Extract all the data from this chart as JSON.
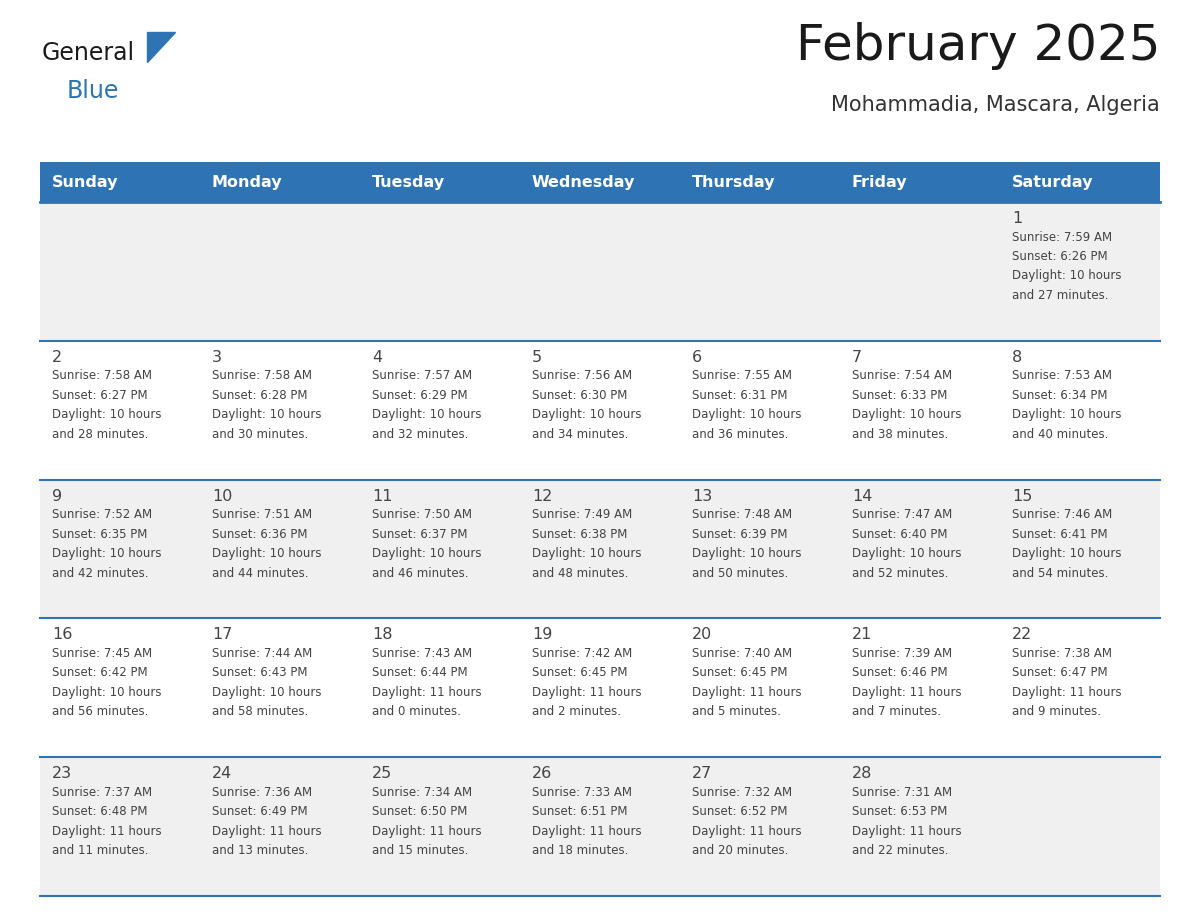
{
  "title": "February 2025",
  "subtitle": "Mohammadia, Mascara, Algeria",
  "header_bg": "#2E74B5",
  "header_text_color": "#FFFFFF",
  "day_names": [
    "Sunday",
    "Monday",
    "Tuesday",
    "Wednesday",
    "Thursday",
    "Friday",
    "Saturday"
  ],
  "row_bg_odd": "#F0F0F0",
  "row_bg_even": "#FFFFFF",
  "separator_color": "#2E74B5",
  "text_color": "#444444",
  "title_color": "#1A1A1A",
  "subtitle_color": "#333333",
  "logo_general_color": "#1A1A1A",
  "logo_blue_color": "#2E74B5",
  "logo_triangle_color": "#2E74B5",
  "calendar": [
    [
      null,
      null,
      null,
      null,
      null,
      null,
      {
        "day": "1",
        "sunrise": "7:59 AM",
        "sunset": "6:26 PM",
        "daylight_line1": "Daylight: 10 hours",
        "daylight_line2": "and 27 minutes."
      }
    ],
    [
      {
        "day": "2",
        "sunrise": "7:58 AM",
        "sunset": "6:27 PM",
        "daylight_line1": "Daylight: 10 hours",
        "daylight_line2": "and 28 minutes."
      },
      {
        "day": "3",
        "sunrise": "7:58 AM",
        "sunset": "6:28 PM",
        "daylight_line1": "Daylight: 10 hours",
        "daylight_line2": "and 30 minutes."
      },
      {
        "day": "4",
        "sunrise": "7:57 AM",
        "sunset": "6:29 PM",
        "daylight_line1": "Daylight: 10 hours",
        "daylight_line2": "and 32 minutes."
      },
      {
        "day": "5",
        "sunrise": "7:56 AM",
        "sunset": "6:30 PM",
        "daylight_line1": "Daylight: 10 hours",
        "daylight_line2": "and 34 minutes."
      },
      {
        "day": "6",
        "sunrise": "7:55 AM",
        "sunset": "6:31 PM",
        "daylight_line1": "Daylight: 10 hours",
        "daylight_line2": "and 36 minutes."
      },
      {
        "day": "7",
        "sunrise": "7:54 AM",
        "sunset": "6:33 PM",
        "daylight_line1": "Daylight: 10 hours",
        "daylight_line2": "and 38 minutes."
      },
      {
        "day": "8",
        "sunrise": "7:53 AM",
        "sunset": "6:34 PM",
        "daylight_line1": "Daylight: 10 hours",
        "daylight_line2": "and 40 minutes."
      }
    ],
    [
      {
        "day": "9",
        "sunrise": "7:52 AM",
        "sunset": "6:35 PM",
        "daylight_line1": "Daylight: 10 hours",
        "daylight_line2": "and 42 minutes."
      },
      {
        "day": "10",
        "sunrise": "7:51 AM",
        "sunset": "6:36 PM",
        "daylight_line1": "Daylight: 10 hours",
        "daylight_line2": "and 44 minutes."
      },
      {
        "day": "11",
        "sunrise": "7:50 AM",
        "sunset": "6:37 PM",
        "daylight_line1": "Daylight: 10 hours",
        "daylight_line2": "and 46 minutes."
      },
      {
        "day": "12",
        "sunrise": "7:49 AM",
        "sunset": "6:38 PM",
        "daylight_line1": "Daylight: 10 hours",
        "daylight_line2": "and 48 minutes."
      },
      {
        "day": "13",
        "sunrise": "7:48 AM",
        "sunset": "6:39 PM",
        "daylight_line1": "Daylight: 10 hours",
        "daylight_line2": "and 50 minutes."
      },
      {
        "day": "14",
        "sunrise": "7:47 AM",
        "sunset": "6:40 PM",
        "daylight_line1": "Daylight: 10 hours",
        "daylight_line2": "and 52 minutes."
      },
      {
        "day": "15",
        "sunrise": "7:46 AM",
        "sunset": "6:41 PM",
        "daylight_line1": "Daylight: 10 hours",
        "daylight_line2": "and 54 minutes."
      }
    ],
    [
      {
        "day": "16",
        "sunrise": "7:45 AM",
        "sunset": "6:42 PM",
        "daylight_line1": "Daylight: 10 hours",
        "daylight_line2": "and 56 minutes."
      },
      {
        "day": "17",
        "sunrise": "7:44 AM",
        "sunset": "6:43 PM",
        "daylight_line1": "Daylight: 10 hours",
        "daylight_line2": "and 58 minutes."
      },
      {
        "day": "18",
        "sunrise": "7:43 AM",
        "sunset": "6:44 PM",
        "daylight_line1": "Daylight: 11 hours",
        "daylight_line2": "and 0 minutes."
      },
      {
        "day": "19",
        "sunrise": "7:42 AM",
        "sunset": "6:45 PM",
        "daylight_line1": "Daylight: 11 hours",
        "daylight_line2": "and 2 minutes."
      },
      {
        "day": "20",
        "sunrise": "7:40 AM",
        "sunset": "6:45 PM",
        "daylight_line1": "Daylight: 11 hours",
        "daylight_line2": "and 5 minutes."
      },
      {
        "day": "21",
        "sunrise": "7:39 AM",
        "sunset": "6:46 PM",
        "daylight_line1": "Daylight: 11 hours",
        "daylight_line2": "and 7 minutes."
      },
      {
        "day": "22",
        "sunrise": "7:38 AM",
        "sunset": "6:47 PM",
        "daylight_line1": "Daylight: 11 hours",
        "daylight_line2": "and 9 minutes."
      }
    ],
    [
      {
        "day": "23",
        "sunrise": "7:37 AM",
        "sunset": "6:48 PM",
        "daylight_line1": "Daylight: 11 hours",
        "daylight_line2": "and 11 minutes."
      },
      {
        "day": "24",
        "sunrise": "7:36 AM",
        "sunset": "6:49 PM",
        "daylight_line1": "Daylight: 11 hours",
        "daylight_line2": "and 13 minutes."
      },
      {
        "day": "25",
        "sunrise": "7:34 AM",
        "sunset": "6:50 PM",
        "daylight_line1": "Daylight: 11 hours",
        "daylight_line2": "and 15 minutes."
      },
      {
        "day": "26",
        "sunrise": "7:33 AM",
        "sunset": "6:51 PM",
        "daylight_line1": "Daylight: 11 hours",
        "daylight_line2": "and 18 minutes."
      },
      {
        "day": "27",
        "sunrise": "7:32 AM",
        "sunset": "6:52 PM",
        "daylight_line1": "Daylight: 11 hours",
        "daylight_line2": "and 20 minutes."
      },
      {
        "day": "28",
        "sunrise": "7:31 AM",
        "sunset": "6:53 PM",
        "daylight_line1": "Daylight: 11 hours",
        "daylight_line2": "and 22 minutes."
      },
      null
    ]
  ]
}
